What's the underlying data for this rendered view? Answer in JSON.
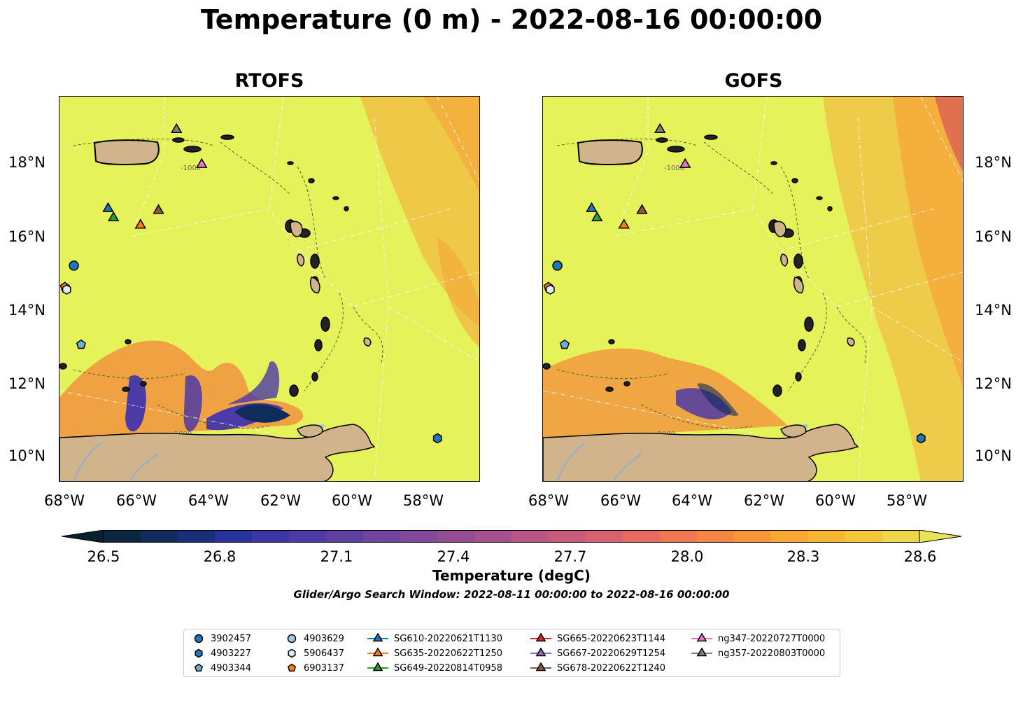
{
  "title": "Temperature (0 m) - 2022-08-16 00:00:00",
  "panels": [
    {
      "title": "RTOFS"
    },
    {
      "title": "GOFS"
    }
  ],
  "lat_labels": [
    "18°N",
    "16°N",
    "14°N",
    "12°N",
    "10°N"
  ],
  "lon_labels": [
    "68°W",
    "66°W",
    "64°W",
    "62°W",
    "60°W",
    "58°W"
  ],
  "isobath_label": "-1000",
  "colorbar": {
    "ticks": [
      "26.5",
      "26.8",
      "27.1",
      "27.4",
      "27.7",
      "28.0",
      "28.3",
      "28.6"
    ],
    "label": "Temperature (degC)",
    "colors": [
      "#0a1f2e",
      "#0d2640",
      "#102c5a",
      "#18307a",
      "#27339a",
      "#3a36a8",
      "#4c3aa6",
      "#5e40a2",
      "#70459e",
      "#82499a",
      "#944d94",
      "#a6518e",
      "#b85686",
      "#c85b7c",
      "#d86270",
      "#e66c62",
      "#ef7852",
      "#f58644",
      "#f89638",
      "#f9a632",
      "#f8b632",
      "#f4c63a",
      "#eed648",
      "#e8e456"
    ]
  },
  "search_window": "Glider/Argo Search Window: 2022-08-11 00:00:00 to 2022-08-16 00:00:00",
  "legend": [
    {
      "label": "3902457",
      "marker": "circle",
      "color": "#1f77b4"
    },
    {
      "label": "4903227",
      "marker": "hexagon",
      "color": "#1f77b4"
    },
    {
      "label": "4903344",
      "marker": "pentagon",
      "color": "#6baed6"
    },
    {
      "label": "4903629",
      "marker": "circle",
      "color": "#9ecae1"
    },
    {
      "label": "5906437",
      "marker": "hexagon",
      "color": "#deebf7"
    },
    {
      "label": "6903137",
      "marker": "pentagon",
      "color": "#ff7f0e"
    },
    {
      "label": "SG610-20220621T1130",
      "marker": "triangle",
      "color": "#1f77b4"
    },
    {
      "label": "SG635-20220622T1250",
      "marker": "triangle",
      "color": "#ff7f0e"
    },
    {
      "label": "SG649-20220814T0958",
      "marker": "triangle",
      "color": "#2ca02c"
    },
    {
      "label": "SG665-20220623T1144",
      "marker": "triangle",
      "color": "#d62728"
    },
    {
      "label": "SG667-20220629T1254",
      "marker": "triangle",
      "color": "#9467bd"
    },
    {
      "label": "SG678-20220622T1240",
      "marker": "triangle",
      "color": "#8c564b"
    },
    {
      "label": "ng347-20220727T0000",
      "marker": "triangle",
      "color": "#e377c2"
    },
    {
      "label": "ng357-20220803T0000",
      "marker": "triangle",
      "color": "#7f7f7f"
    }
  ],
  "map_colors": {
    "ocean_base": "#e6f25a",
    "land": "#d2b48c",
    "warm": "#f5a63a",
    "cool": "#4c3aa6",
    "cold": "#102c5a"
  },
  "observations": [
    {
      "id": "3902457",
      "lon": -67.8,
      "lat": 15.2
    },
    {
      "id": "4903227",
      "lon": -57.7,
      "lat": 10.5
    },
    {
      "id": "4903344",
      "lon": -67.6,
      "lat": 13.05
    },
    {
      "id": "6903137",
      "lon": -68.05,
      "lat": 14.62
    },
    {
      "id": "5906437",
      "lon": -68.0,
      "lat": 14.55
    },
    {
      "id": "SG610-20220621T1130",
      "lon": -66.85,
      "lat": 16.75
    },
    {
      "id": "SG649-20220814T0958",
      "lon": -66.7,
      "lat": 16.5
    },
    {
      "id": "SG635-20220622T1250",
      "lon": -65.95,
      "lat": 16.3
    },
    {
      "id": "SG678-20220622T1240",
      "lon": -65.45,
      "lat": 16.7
    },
    {
      "id": "ng357-20220803T0000",
      "lon": -64.95,
      "lat": 18.9
    },
    {
      "id": "ng347-20220727T0000",
      "lon": -64.25,
      "lat": 17.95
    }
  ]
}
